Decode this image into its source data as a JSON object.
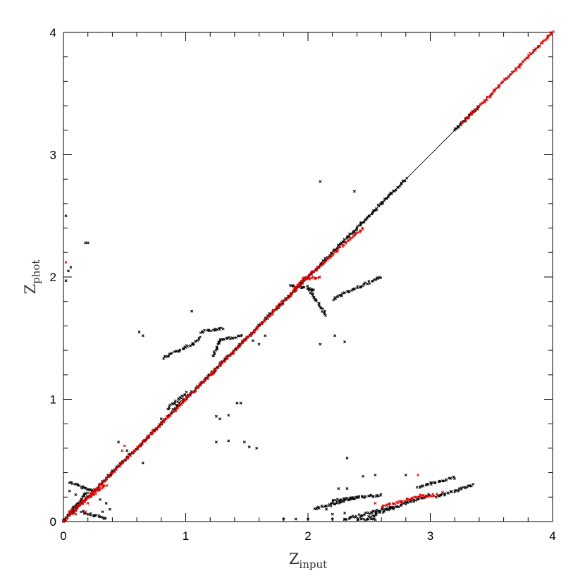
{
  "chart_data": {
    "type": "scatter",
    "title": "",
    "xlabel": {
      "main": "Z",
      "sub": "input"
    },
    "ylabel": {
      "main": "Z",
      "sub": "phot"
    },
    "xlim": [
      0,
      4
    ],
    "ylim": [
      0,
      4
    ],
    "x_ticks": [
      "0",
      "1",
      "2",
      "3",
      "4"
    ],
    "y_ticks": [
      "0",
      "1",
      "2",
      "3",
      "4"
    ],
    "grid": false,
    "legend": "none",
    "colors": {
      "primary": "#000000",
      "highlight": "#e00000",
      "reference": "#000000"
    },
    "reference_line": {
      "from": [
        0,
        0
      ],
      "to": [
        4,
        4
      ]
    },
    "series": [
      {
        "color": "#000000",
        "segments": [
          {
            "from": [
              0.0,
              0.0
            ],
            "to": [
              0.35,
              0.35
            ]
          },
          {
            "from": [
              0.35,
              0.35
            ],
            "to": [
              0.9,
              0.9
            ]
          },
          {
            "from": [
              0.9,
              0.92
            ],
            "to": [
              1.1,
              1.1
            ]
          },
          {
            "from": [
              1.1,
              1.1
            ],
            "to": [
              1.95,
              1.95
            ]
          },
          {
            "from": [
              1.95,
              1.95
            ],
            "to": [
              2.8,
              2.8
            ]
          },
          {
            "from": [
              3.2,
              3.2
            ],
            "to": [
              3.4,
              3.4
            ]
          },
          {
            "from": [
              0.82,
              1.34
            ],
            "to": [
              1.05,
              1.45
            ]
          },
          {
            "from": [
              1.05,
              1.45
            ],
            "to": [
              1.12,
              1.5
            ]
          },
          {
            "from": [
              1.12,
              1.55
            ],
            "to": [
              1.3,
              1.58
            ]
          },
          {
            "from": [
              1.22,
              1.35
            ],
            "to": [
              1.28,
              1.48
            ]
          },
          {
            "from": [
              1.28,
              1.48
            ],
            "to": [
              1.45,
              1.52
            ]
          },
          {
            "from": [
              0.85,
              0.92
            ],
            "to": [
              1.0,
              1.05
            ]
          },
          {
            "from": [
              1.85,
              1.93
            ],
            "to": [
              2.05,
              1.9
            ]
          },
          {
            "from": [
              2.0,
              1.92
            ],
            "to": [
              2.15,
              1.68
            ]
          },
          {
            "from": [
              2.2,
              1.82
            ],
            "to": [
              2.6,
              2.0
            ]
          },
          {
            "from": [
              0.05,
              0.32
            ],
            "to": [
              0.25,
              0.25
            ]
          },
          {
            "from": [
              0.0,
              0.0
            ],
            "to": [
              0.2,
              0.25
            ]
          },
          {
            "from": [
              0.15,
              0.08
            ],
            "to": [
              0.35,
              0.02
            ]
          },
          {
            "from": [
              2.05,
              0.1
            ],
            "to": [
              2.4,
              0.2
            ]
          },
          {
            "from": [
              2.2,
              0.17
            ],
            "to": [
              2.6,
              0.22
            ]
          },
          {
            "from": [
              2.3,
              0.02
            ],
            "to": [
              2.7,
              0.12
            ]
          },
          {
            "from": [
              2.5,
              0.04
            ],
            "to": [
              3.0,
              0.22
            ]
          },
          {
            "from": [
              2.9,
              0.28
            ],
            "to": [
              3.2,
              0.36
            ]
          },
          {
            "from": [
              3.05,
              0.2
            ],
            "to": [
              3.35,
              0.3
            ]
          },
          {
            "from": [
              2.4,
              0.02
            ],
            "to": [
              2.55,
              0.02
            ]
          }
        ],
        "points": [
          [
            0.02,
            2.5
          ],
          [
            0.02,
            1.97
          ],
          [
            0.04,
            2.05
          ],
          [
            0.06,
            2.08
          ],
          [
            0.18,
            2.28
          ],
          [
            0.2,
            2.28
          ],
          [
            0.62,
            1.55
          ],
          [
            0.65,
            1.52
          ],
          [
            1.05,
            1.72
          ],
          [
            2.1,
            2.78
          ],
          [
            2.38,
            2.7
          ],
          [
            2.1,
            1.45
          ],
          [
            2.3,
            1.47
          ],
          [
            2.22,
            1.52
          ],
          [
            2.32,
            0.52
          ],
          [
            1.25,
            0.65
          ],
          [
            1.35,
            0.66
          ],
          [
            1.48,
            0.65
          ],
          [
            1.52,
            0.61
          ],
          [
            1.58,
            0.6
          ],
          [
            1.42,
            0.97
          ],
          [
            1.45,
            0.97
          ],
          [
            1.25,
            0.86
          ],
          [
            1.35,
            0.87
          ],
          [
            1.28,
            0.84
          ],
          [
            0.8,
            0.84
          ],
          [
            0.45,
            0.65
          ],
          [
            0.52,
            0.58
          ],
          [
            0.65,
            0.48
          ],
          [
            2.25,
            0.27
          ],
          [
            2.32,
            0.27
          ],
          [
            2.45,
            0.37
          ],
          [
            2.55,
            0.38
          ],
          [
            2.8,
            0.38
          ],
          [
            1.8,
            0.02
          ],
          [
            1.9,
            0.02
          ],
          [
            2.0,
            0.02
          ],
          [
            2.2,
            0.02
          ],
          [
            2.3,
            0.02
          ],
          [
            0.05,
            0.25
          ],
          [
            0.1,
            0.22
          ],
          [
            0.08,
            0.12
          ],
          [
            0.12,
            0.15
          ],
          [
            0.35,
            0.15
          ],
          [
            0.32,
            0.08
          ],
          [
            0.38,
            0.1
          ],
          [
            0.25,
            0.05
          ],
          [
            0.3,
            0.18
          ],
          [
            2.2,
            0.06
          ],
          [
            2.15,
            0.1
          ],
          [
            2.3,
            0.07
          ],
          [
            1.55,
            1.48
          ],
          [
            1.65,
            1.52
          ],
          [
            1.6,
            1.45
          ]
        ]
      },
      {
        "color": "#e00000",
        "segments": [
          {
            "from": [
              0.0,
              0.0
            ],
            "to": [
              0.3,
              0.3
            ]
          },
          {
            "from": [
              0.3,
              0.3
            ],
            "to": [
              1.0,
              1.0
            ]
          },
          {
            "from": [
              1.0,
              1.0
            ],
            "to": [
              1.95,
              1.95
            ]
          },
          {
            "from": [
              1.9,
              1.92
            ],
            "to": [
              2.45,
              2.4
            ]
          },
          {
            "from": [
              1.95,
              1.98
            ],
            "to": [
              2.1,
              2.0
            ]
          },
          {
            "from": [
              3.25,
              3.25
            ],
            "to": [
              4.0,
              4.0
            ]
          },
          {
            "from": [
              0.05,
              0.08
            ],
            "to": [
              0.35,
              0.3
            ]
          },
          {
            "from": [
              2.6,
              0.12
            ],
            "to": [
              2.95,
              0.22
            ]
          },
          {
            "from": [
              2.95,
              0.2
            ],
            "to": [
              3.05,
              0.22
            ]
          }
        ],
        "points": [
          [
            0.5,
            0.62
          ],
          [
            0.48,
            0.58
          ],
          [
            0.02,
            2.12
          ],
          [
            0.18,
            0.08
          ],
          [
            2.9,
            0.38
          ],
          [
            0.2,
            0.15
          ],
          [
            0.1,
            0.06
          ],
          [
            3.1,
            0.24
          ],
          [
            2.55,
            0.15
          ]
        ]
      }
    ]
  }
}
